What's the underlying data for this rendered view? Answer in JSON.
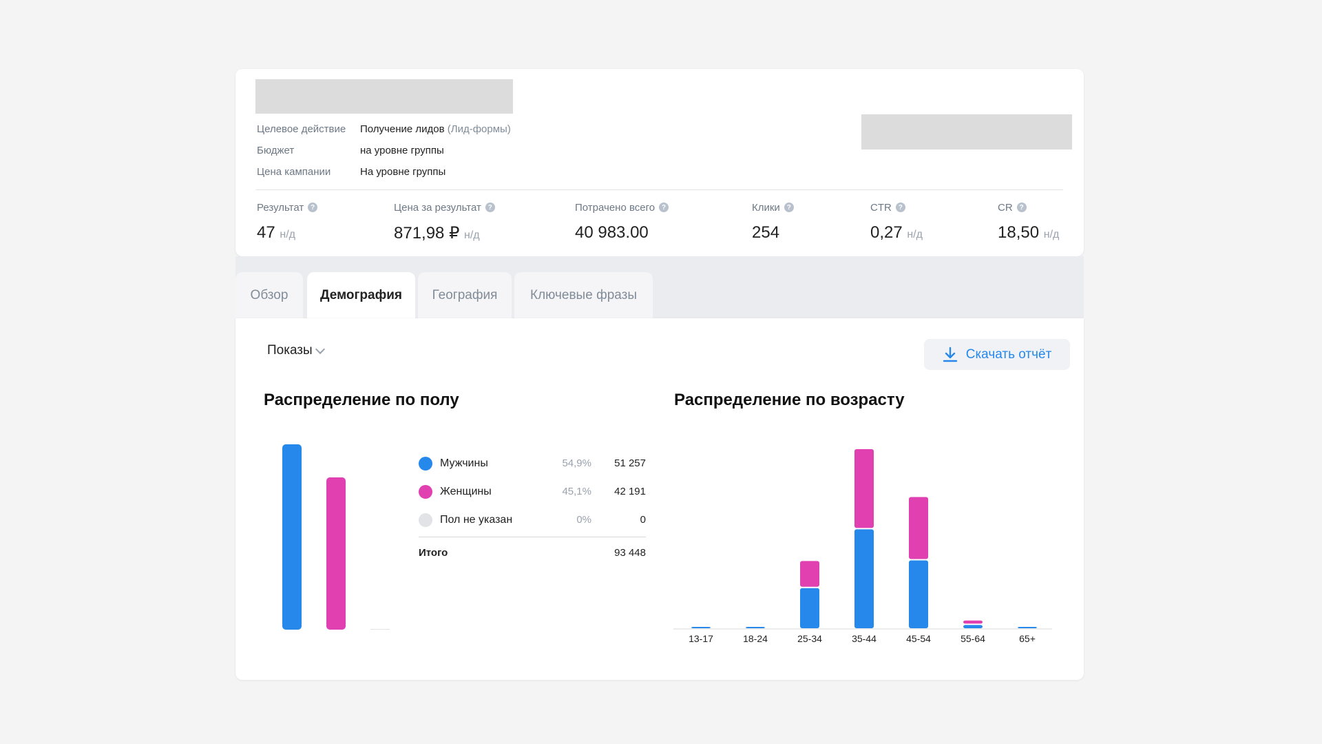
{
  "campaign": {
    "info": [
      {
        "key": "Целевое действие",
        "value": "Получение лидов",
        "extra": "(Лид-формы)"
      },
      {
        "key": "Бюджет",
        "value": "на уровне группы",
        "extra": ""
      },
      {
        "key": "Цена кампании",
        "value": "На уровне группы",
        "extra": ""
      }
    ],
    "metrics": [
      {
        "label": "Результат",
        "value": "47",
        "na": "н/д"
      },
      {
        "label": "Цена за результат",
        "value": "871,98 ₽",
        "na": "н/д"
      },
      {
        "label": "Потрачено всего",
        "value": "40 983.00",
        "na": ""
      },
      {
        "label": "Клики",
        "value": "254",
        "na": ""
      },
      {
        "label": "CTR",
        "value": "0,27",
        "na": "н/д"
      },
      {
        "label": "CR",
        "value": "18,50",
        "na": "н/д"
      }
    ],
    "help_glyph": "?"
  },
  "tabs": [
    {
      "label": "Обзор",
      "active": false
    },
    {
      "label": "Демография",
      "active": true
    },
    {
      "label": "География",
      "active": false
    },
    {
      "label": "Ключевые фразы",
      "active": false
    }
  ],
  "toolbar": {
    "metric_select": "Показы",
    "download_label": "Скачать отчёт"
  },
  "gender": {
    "title": "Распределение по полу",
    "rows": [
      {
        "label": "Мужчины",
        "pct": "54,9%",
        "value": "51 257",
        "color": "#2688eb"
      },
      {
        "label": "Женщины",
        "pct": "45,1%",
        "value": "42 191",
        "color": "#e040b0"
      },
      {
        "label": "Пол не указан",
        "pct": "0%",
        "value": "0",
        "color": "#e1e3e6"
      }
    ],
    "total_label": "Итого",
    "total_value": "93 448"
  },
  "age": {
    "title": "Распределение по возрасту"
  },
  "chart_data": [
    {
      "type": "bar",
      "categories": [
        "Мужчины",
        "Женщины",
        "Пол не указан"
      ],
      "values": [
        51257,
        42191,
        0
      ],
      "colors": [
        "#2688eb",
        "#e040b0",
        "#e1e3e6"
      ]
    },
    {
      "type": "bar",
      "stacked": true,
      "categories": [
        "13-17",
        "18-24",
        "25-34",
        "35-44",
        "45-54",
        "55-64",
        "65+"
      ],
      "series": [
        {
          "color": "#2688eb",
          "values": [
            150,
            150,
            6200,
            15300,
            10500,
            500,
            150
          ]
        },
        {
          "color": "#e040b0",
          "values": [
            0,
            0,
            4200,
            12400,
            9800,
            700,
            0
          ]
        }
      ]
    }
  ]
}
